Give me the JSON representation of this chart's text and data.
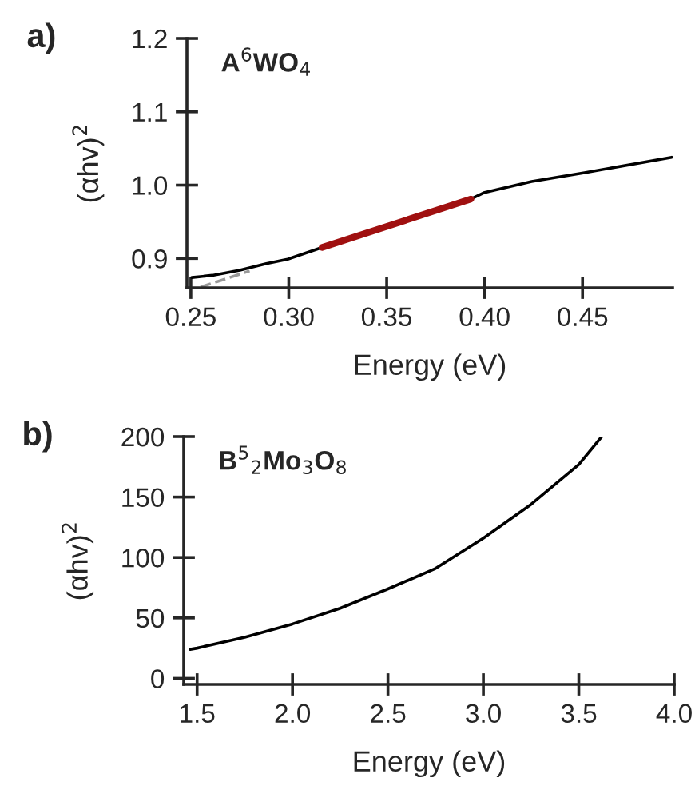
{
  "chart_data": [
    {
      "type": "line",
      "xlabel": "Energy (eV)",
      "ylabel": "(αhv)$^{2}$",
      "annotations": [
        "a)",
        "A$^{6}$WO$_{4}$"
      ],
      "xlim": [
        0.248,
        0.496
      ],
      "ylim": [
        0.86,
        1.2
      ],
      "xticks": [
        0.25,
        {
          "value": 0.3,
          "label": "0.30"
        },
        0.35,
        {
          "value": 0.4,
          "label": "0.40"
        },
        0.45
      ],
      "yticks": [
        0.9,
        {
          "value": 1.0,
          "label": "1.0"
        },
        1.1,
        1.2
      ],
      "grid": false,
      "legend": false,
      "series": [
        {
          "color": "#000000",
          "x": [
            0.2505,
            0.261,
            0.275,
            0.2885,
            0.2994,
            0.317,
            0.355,
            0.393,
            0.4,
            0.424,
            0.451,
            0.4955
          ],
          "values": [
            0.874,
            0.877,
            0.884,
            0.893,
            0.899,
            0.915,
            null,
            0.981,
            0.99,
            1.005,
            1.017,
            1.038
          ]
        },
        {
          "color": "#999999",
          "line_style": "dashed",
          "x": [
            0.255,
            0.28
          ],
          "values": [
            0.861,
            0.883
          ]
        },
        {
          "color": "#a01010",
          "x": [
            0.317,
            0.393
          ],
          "values": [
            0.915,
            0.981
          ]
        }
      ]
    },
    {
      "type": "line",
      "xlabel": "Energy (eV)",
      "ylabel": "(αhv)$^{2}$",
      "annotations": [
        "b)",
        "B$^{5}$$_{2}$Mo$_{3}$O$_{8}$"
      ],
      "xlim": [
        1.43,
        4.0
      ],
      "ylim": [
        -5,
        200
      ],
      "xticks": [
        1.5,
        {
          "value": 2.0,
          "label": "2.0"
        },
        2.5,
        {
          "value": 3.0,
          "label": "3.0"
        },
        3.5,
        {
          "value": 4.0,
          "label": "4.0"
        }
      ],
      "yticks": [
        0,
        50,
        100,
        150,
        200
      ],
      "grid": false,
      "legend": false,
      "series": [
        {
          "color": "#000000",
          "x": [
            1.464,
            1.5,
            1.75,
            2.0,
            2.25,
            2.5,
            2.75,
            3.0,
            3.25,
            3.5,
            3.62
          ],
          "values": [
            24,
            25,
            34,
            45,
            58,
            74,
            91,
            116,
            144,
            177,
            200
          ]
        }
      ]
    }
  ]
}
